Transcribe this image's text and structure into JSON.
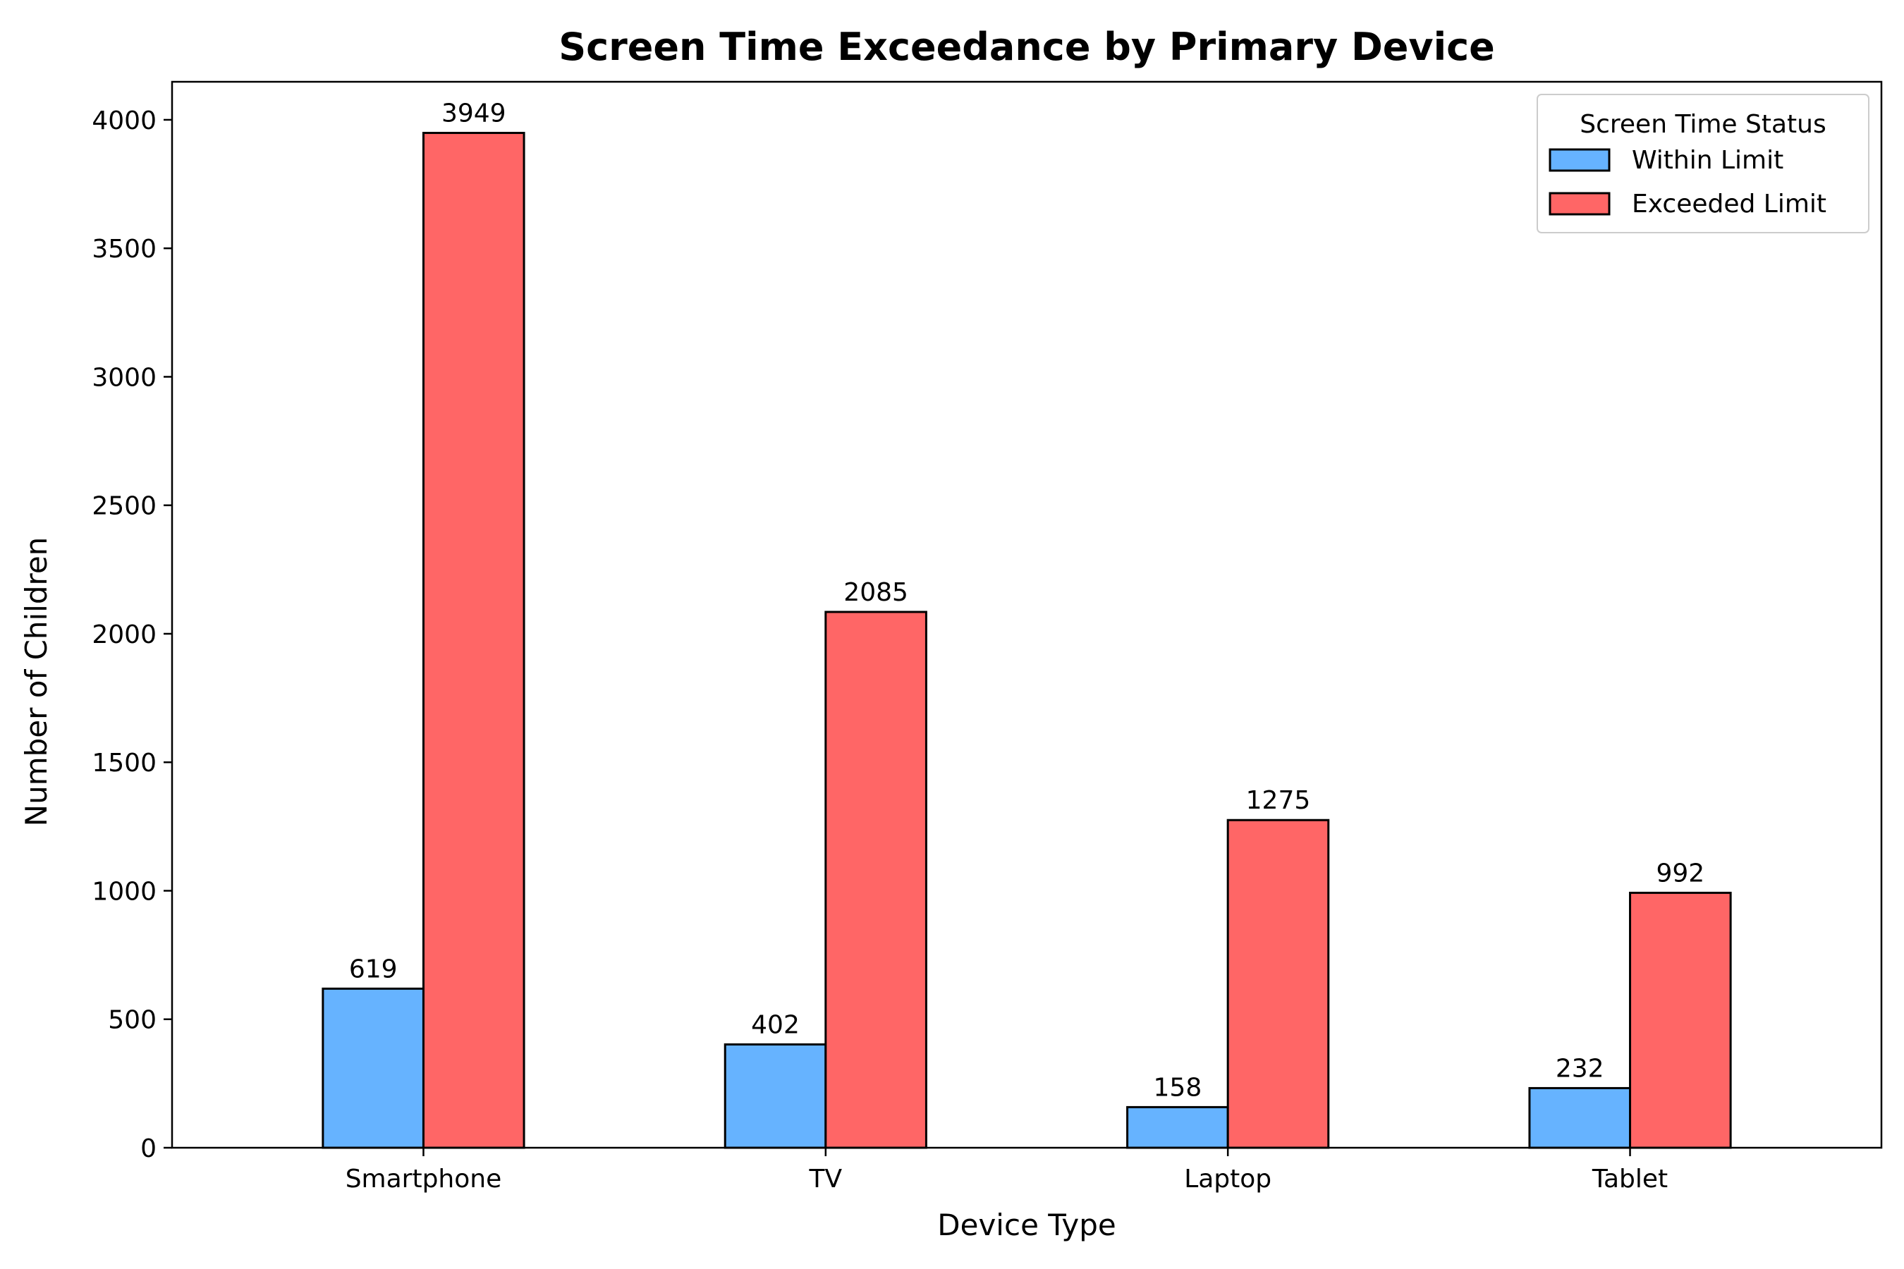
{
  "chart_data": {
    "type": "bar",
    "title": "Screen Time Exceedance by Primary Device",
    "xlabel": "Device Type",
    "ylabel": "Number of Children",
    "categories": [
      "Smartphone",
      "TV",
      "Laptop",
      "Tablet"
    ],
    "series": [
      {
        "name": "Within Limit",
        "values": [
          619,
          402,
          158,
          232
        ],
        "color": "#66b3ff"
      },
      {
        "name": "Exceeded Limit",
        "values": [
          3949,
          2085,
          1275,
          992
        ],
        "color": "#ff6666"
      }
    ],
    "ylim": [
      0,
      4148
    ],
    "yticks": [
      0,
      500,
      1000,
      1500,
      2000,
      2500,
      3000,
      3500,
      4000
    ],
    "grid": false,
    "legend": {
      "title": "Screen Time Status",
      "placement": "top-right"
    },
    "data_labels": true
  }
}
